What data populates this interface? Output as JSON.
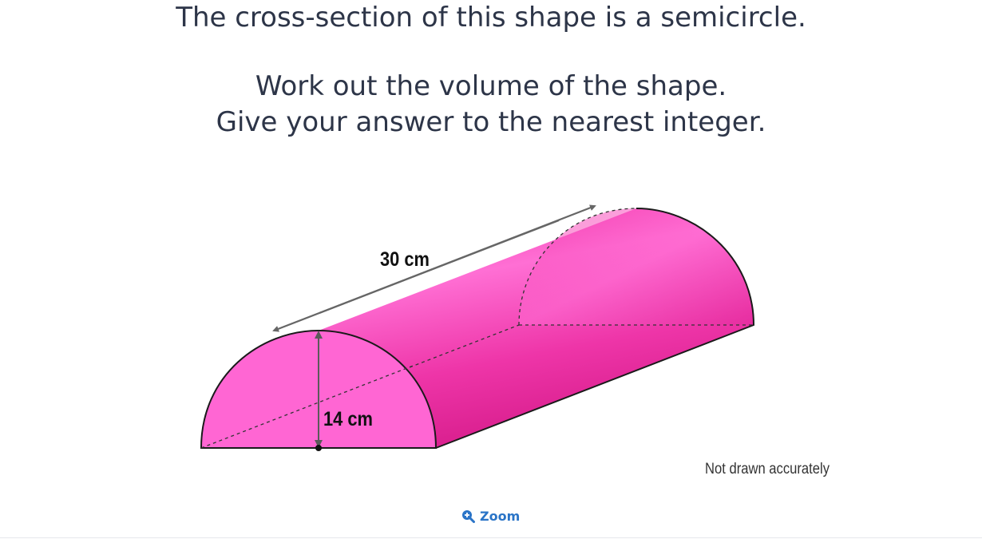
{
  "question": {
    "line1": "The cross-section of this shape is a semicircle.",
    "line2": "Work out the volume of the shape.",
    "line3": "Give your answer to the nearest integer."
  },
  "diagram": {
    "shape": "half-cylinder",
    "length_label": "30 cm",
    "height_label": "14 cm",
    "note": "Not drawn accurately",
    "fill_color": "#ec2d9f",
    "face_color": "#ff66d3"
  },
  "zoom": {
    "label": "Zoom",
    "icon": "zoom-in-icon"
  }
}
